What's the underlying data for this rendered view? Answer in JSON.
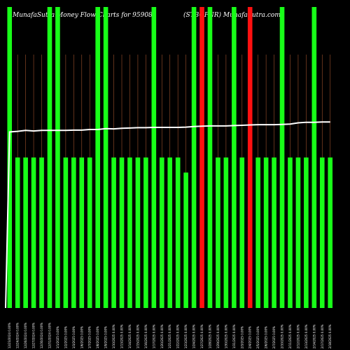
{
  "chart_data": {
    "type": "bar",
    "title": "MunafaSutra  Money Flow  Charts for 959085",
    "subtitle": "(STBOPNR)  MunafaSutra.com",
    "ylim": [
      0,
      100
    ],
    "colors": {
      "up": "#18ff18",
      "down": "#ff1010",
      "line": "#ffffff",
      "guide": "#a0522d",
      "background": "#000000"
    },
    "categories": [
      "12/23/2024 0.00%",
      "12/24/2024 0.00%",
      "12/26/2024 0.00%",
      "12/27/2024 0.00%",
      "12/30/2024 0.00%",
      "12/31/2024 0.00%",
      "1/1/2025 0.00%",
      "1/2/2025 0.00%",
      "1/3/2025 0.00%",
      "1/6/2025 0.00%",
      "1/7/2025 0.00%",
      "1/8/2025 0.00%",
      "1/9/2025 0.00%",
      "1/10/2025 0.00%",
      "1/13/2025 0.00%",
      "1/14/2025 0.00%",
      "1/15/2025 0.00%",
      "1/16/2025 0.00%",
      "1/17/2025 0.00%",
      "1/20/2025 0.00%",
      "1/21/2025 0.00%",
      "1/22/2025 0.00%",
      "1/23/2025 0.00%",
      "1/24/2025 0.00%",
      "1/27/2025 0.00%",
      "1/28/2025 0.00%",
      "1/29/2025 0.00%",
      "1/30/2025 0.00%",
      "1/31/2025 0.00%",
      "2/3/2025 0.00%",
      "2/4/2025 0.00%",
      "2/5/2025 0.00%",
      "2/6/2025 0.00%",
      "2/7/2025 0.00%",
      "2/10/2025 0.00%",
      "2/11/2025 0.00%",
      "2/12/2025 0.00%",
      "2/13/2025 0.00%",
      "2/14/2025 0.00%",
      "2/17/2025 0.00%",
      "2/18/2025 0.00%"
    ],
    "series": [
      {
        "type": "bar",
        "values": [
          100,
          50,
          50,
          50,
          50,
          100,
          100,
          50,
          50,
          50,
          50,
          100,
          100,
          50,
          50,
          50,
          50,
          50,
          100,
          50,
          50,
          50,
          45,
          100,
          100,
          100,
          50,
          50,
          100,
          50,
          100,
          50,
          50,
          50,
          100,
          50,
          50,
          50,
          100,
          50,
          50
        ],
        "colors": [
          "up",
          "up",
          "up",
          "up",
          "up",
          "up",
          "up",
          "up",
          "up",
          "up",
          "up",
          "up",
          "up",
          "up",
          "up",
          "up",
          "up",
          "up",
          "up",
          "up",
          "up",
          "up",
          "up",
          "up",
          "down",
          "up",
          "up",
          "up",
          "up",
          "up",
          "down",
          "up",
          "up",
          "up",
          "up",
          "up",
          "up",
          "up",
          "up",
          "up",
          "up"
        ]
      },
      {
        "type": "line",
        "values": [
          58.5,
          58.7,
          59,
          58.8,
          59,
          59,
          59,
          59,
          59.1,
          59.1,
          59.3,
          59.3,
          59.6,
          59.5,
          59.7,
          59.8,
          59.9,
          59.9,
          60,
          60,
          60,
          60,
          60.1,
          60.3,
          60.4,
          60.5,
          60.5,
          60.5,
          60.6,
          60.7,
          60.8,
          60.9,
          60.9,
          60.9,
          61,
          61.1,
          61.5,
          61.7,
          61.7,
          61.8,
          61.8
        ]
      }
    ]
  }
}
